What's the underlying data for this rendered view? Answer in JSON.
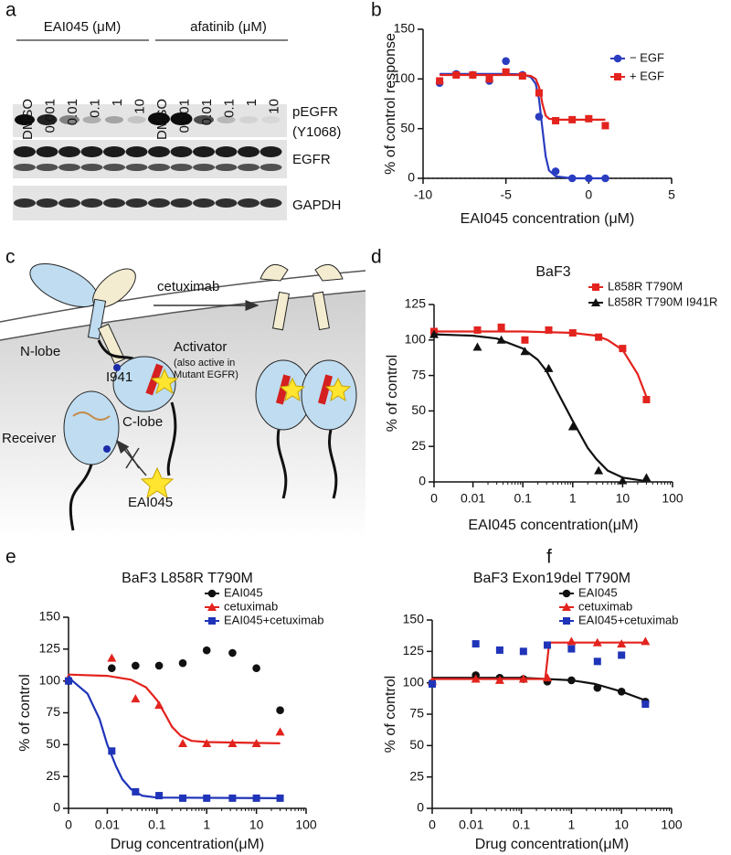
{
  "panel_a": {
    "label": "a",
    "groups": [
      "EAI045 (μM)",
      "afatinib (μM)"
    ],
    "lanes": [
      "DMSO",
      "0.001",
      "0.01",
      "0.1",
      "1",
      "10",
      "DMSO",
      "0.001",
      "0.01",
      "0.1",
      "1",
      "10"
    ],
    "rows": [
      [
        "pEGFR",
        "(Y1068)"
      ],
      [
        "EGFR"
      ],
      [
        "GAPDH"
      ]
    ]
  },
  "panel_c": {
    "label": "c",
    "drug": "cetuximab",
    "n_lobe": "N-lobe",
    "activator": "Activator",
    "activator_note_1": "(also active in",
    "activator_note_2": "Mutant EGFR)",
    "residue": "I941",
    "c_lobe": "C-lobe",
    "receiver": "Receiver",
    "compound": "EAI045"
  },
  "chart_data": [
    {
      "panel": "b",
      "type": "scatter",
      "xlabel": "EAI045 concentration (μM)",
      "ylabel": "% of control response",
      "x": [
        -9,
        -8,
        -7,
        -6,
        -5,
        -4,
        -3,
        -2,
        -1,
        0,
        1
      ],
      "xlim": [
        -10,
        5
      ],
      "xticks": [
        -10,
        -5,
        0,
        5
      ],
      "ylim": [
        0,
        150
      ],
      "yticks": [
        0,
        50,
        100,
        150
      ],
      "reference_line": 0,
      "legend": "upper right",
      "series": [
        {
          "name": "− EGF",
          "color": "#2a3cc0",
          "marker": "circle",
          "values": [
            96,
            105,
            104,
            98,
            118,
            104,
            62,
            7,
            0,
            0,
            0
          ],
          "curve": {
            "x": [
              -9,
              -5,
              -4,
              -3.5,
              -3.2,
              -3,
              -2.8,
              -2.6,
              -2.4,
              -2,
              -1,
              1
            ],
            "values": [
              105,
              105,
              104.5,
              102,
              95,
              80,
              50,
              22,
              8,
              2,
              0,
              0
            ]
          }
        },
        {
          "name": "+ EGF",
          "color": "#e3231d",
          "marker": "square",
          "values": [
            98,
            104,
            104,
            100,
            107,
            103,
            86,
            58,
            59,
            60,
            53
          ],
          "curve": {
            "x": [
              -9,
              -4,
              -3.5,
              -3.2,
              -3,
              -2.9,
              -2.8,
              -2.6,
              -2.4,
              -2,
              1
            ],
            "values": [
              104,
              104,
              103,
              100,
              92,
              85,
              75,
              63,
              60,
              59,
              59
            ]
          }
        }
      ]
    },
    {
      "panel": "d",
      "type": "scatter",
      "title": "BaF3",
      "xlabel": "EAI045 concentration(μM)",
      "ylabel": "% of control",
      "xscale": "log",
      "x": [
        0,
        0.0123,
        0.037,
        0.11,
        0.33,
        1,
        3.3,
        10,
        30
      ],
      "xlim": [
        0,
        100
      ],
      "xticks": [
        0,
        0.01,
        0.1,
        1,
        10,
        100
      ],
      "ylim": [
        0,
        125
      ],
      "yticks": [
        0,
        25,
        50,
        75,
        100,
        125
      ],
      "legend": "above right",
      "series": [
        {
          "name": "L858R T790M",
          "color": "#e3231d",
          "marker": "square",
          "values": [
            106,
            107,
            109,
            100,
            107,
            105,
            102,
            94,
            58
          ],
          "curve": {
            "x": [
              0,
              0.01,
              0.1,
              1,
              3,
              5,
              10,
              20,
              30
            ],
            "values": [
              106,
              106,
              106,
              105,
              103,
              100,
              93,
              76,
              60
            ]
          }
        },
        {
          "name": "L858R T790M I941R",
          "color": "#111111",
          "marker": "triangle",
          "values": [
            104,
            95,
            100,
            92,
            80,
            39,
            8,
            1,
            3
          ],
          "curve": {
            "x": [
              0,
              0.01,
              0.03,
              0.1,
              0.2,
              0.3,
              0.5,
              1,
              2,
              3,
              5,
              10,
              30
            ],
            "values": [
              104,
              103,
              101,
              94,
              86,
              78,
              63,
              43,
              24,
              16,
              8,
              3,
              0.5
            ]
          }
        }
      ]
    },
    {
      "panel": "e",
      "type": "scatter",
      "title": "BaF3 L858R T790M",
      "xlabel": "Drug concentration(μM)",
      "ylabel": "% of control",
      "xscale": "log",
      "x": [
        0,
        0.0123,
        0.037,
        0.11,
        0.33,
        1,
        3.3,
        10,
        30
      ],
      "xlim": [
        0,
        100
      ],
      "xticks": [
        0,
        0.01,
        0.1,
        1,
        10,
        100
      ],
      "ylim": [
        0,
        150
      ],
      "yticks": [
        0,
        25,
        50,
        75,
        100,
        125,
        150
      ],
      "legend": "above right",
      "series": [
        {
          "name": "EAI045",
          "color": "#111111",
          "marker": "circle",
          "values": [
            100,
            110,
            112,
            112,
            114,
            124,
            122,
            110,
            77
          ]
        },
        {
          "name": "cetuximab",
          "color": "#e3231d",
          "marker": "triangle",
          "values": [
            102,
            118,
            86,
            81,
            51,
            51,
            51,
            51,
            60
          ],
          "curve": {
            "x": [
              0,
              0.01,
              0.03,
              0.06,
              0.1,
              0.15,
              0.2,
              0.3,
              0.5,
              1,
              30
            ],
            "values": [
              105,
              104,
              101,
              95,
              85,
              73,
              64,
              57,
              53,
              52,
              51
            ]
          }
        },
        {
          "name": "EAI045+cetuximab",
          "color": "#1f34b8",
          "marker": "square",
          "values": [
            100,
            45,
            13,
            10,
            8,
            8,
            8,
            8,
            8
          ],
          "curve": {
            "x": [
              0,
              0.002,
              0.004,
              0.007,
              0.01,
              0.015,
              0.02,
              0.03,
              0.05,
              0.1,
              30
            ],
            "values": [
              104,
              100,
              90,
              70,
              50,
              33,
              23,
              15,
              10,
              8.5,
              8
            ]
          }
        }
      ]
    },
    {
      "panel": "f",
      "type": "scatter",
      "title": "BaF3 Exon19del T790M",
      "xlabel": "Drug concentration(μM)",
      "ylabel": "% of control",
      "xscale": "log",
      "x": [
        0,
        0.0123,
        0.037,
        0.11,
        0.33,
        1,
        3.3,
        10,
        30
      ],
      "xlim": [
        0,
        100
      ],
      "xticks": [
        0,
        0.01,
        0.1,
        1,
        10,
        100
      ],
      "ylim": [
        0,
        150
      ],
      "yticks": [
        0,
        25,
        50,
        75,
        100,
        125,
        150
      ],
      "legend": "above right",
      "series": [
        {
          "name": "EAI045",
          "color": "#111111",
          "marker": "circle",
          "values": [
            100,
            106,
            104,
            103,
            101,
            102,
            96,
            93,
            85
          ],
          "curve": {
            "x": [
              0,
              0.1,
              1,
              3,
              10,
              30
            ],
            "values": [
              104,
              104,
              102,
              99,
              93,
              86
            ]
          }
        },
        {
          "name": "cetuximab",
          "color": "#e3231d",
          "marker": "triangle",
          "values": [
            101,
            103,
            102,
            103,
            104,
            133,
            132,
            131,
            133
          ],
          "curve": {
            "x": [
              0,
              0.3,
              0.33,
              0.36,
              30
            ],
            "values": [
              103,
              103,
              118,
              132,
              132
            ]
          }
        },
        {
          "name": "EAI045+cetuximab",
          "color": "#1f34b8",
          "marker": "square",
          "values": [
            99,
            131,
            126,
            125,
            130,
            127,
            117,
            122,
            83
          ]
        }
      ]
    }
  ]
}
